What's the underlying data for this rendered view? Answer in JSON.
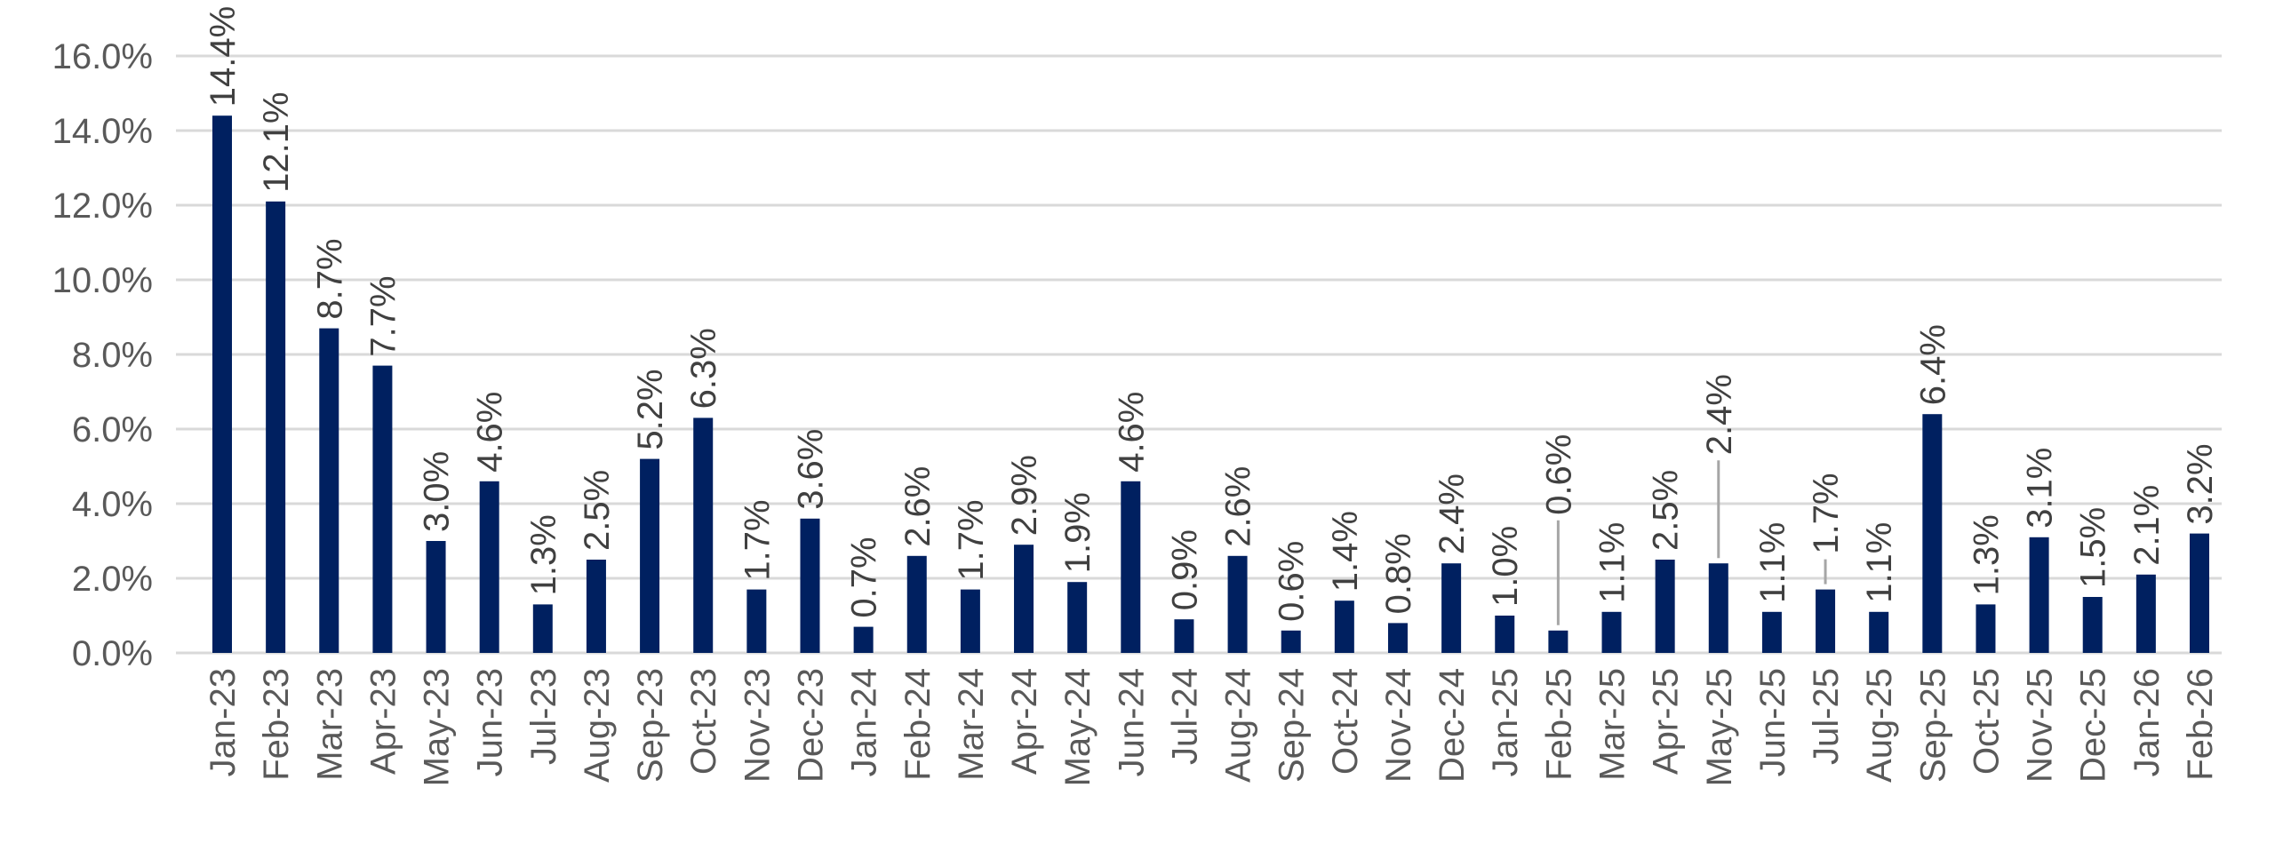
{
  "chart_data": {
    "type": "bar",
    "categories": [
      "Jan-23",
      "Feb-23",
      "Mar-23",
      "Apr-23",
      "May-23",
      "Jun-23",
      "Jul-23",
      "Aug-23",
      "Sep-23",
      "Oct-23",
      "Nov-23",
      "Dec-23",
      "Jan-24",
      "Feb-24",
      "Mar-24",
      "Apr-24",
      "May-24",
      "Jun-24",
      "Jul-24",
      "Aug-24",
      "Sep-24",
      "Oct-24",
      "Nov-24",
      "Dec-24",
      "Jan-25",
      "Feb-25",
      "Mar-25",
      "Apr-25",
      "May-25",
      "Jun-25",
      "Jul-25",
      "Aug-25",
      "Sep-25",
      "Oct-25",
      "Nov-25",
      "Dec-25",
      "Jan-26",
      "Feb-26"
    ],
    "values": [
      14.4,
      12.1,
      8.7,
      7.7,
      3.0,
      4.6,
      1.3,
      2.5,
      5.2,
      6.3,
      1.7,
      3.6,
      0.7,
      2.6,
      1.7,
      2.9,
      1.9,
      4.6,
      0.9,
      2.6,
      0.6,
      1.4,
      0.8,
      2.4,
      1.0,
      0.6,
      1.1,
      2.5,
      2.4,
      1.1,
      1.7,
      1.1,
      6.4,
      1.3,
      3.1,
      1.5,
      2.1,
      3.2
    ],
    "data_labels": [
      "14.4%",
      "12.1%",
      "8.7%",
      "7.7%",
      "3.0%",
      "4.6%",
      "1.3%",
      "2.5%",
      "5.2%",
      "6.3%",
      "1.7%",
      "3.6%",
      "0.7%",
      "2.6%",
      "1.7%",
      "2.9%",
      "1.9%",
      "4.6%",
      "0.9%",
      "2.6%",
      "0.6%",
      "1.4%",
      "0.8%",
      "2.4%",
      "1.0%",
      "0.6%",
      "1.1%",
      "2.5%",
      "2.4%",
      "1.1%",
      "1.7%",
      "1.1%",
      "6.4%",
      "1.3%",
      "3.1%",
      "1.5%",
      "2.1%",
      "3.2%"
    ],
    "y_ticks": [
      "0.0%",
      "2.0%",
      "4.0%",
      "6.0%",
      "8.0%",
      "10.0%",
      "12.0%",
      "14.0%",
      "16.0%"
    ],
    "ylim": [
      0,
      16
    ],
    "y_unit": "percent",
    "title": "",
    "xlabel": "",
    "ylabel": "",
    "grid": true,
    "legend": "none",
    "bar_color": "#002060",
    "grid_color": "#d9d9d9"
  }
}
